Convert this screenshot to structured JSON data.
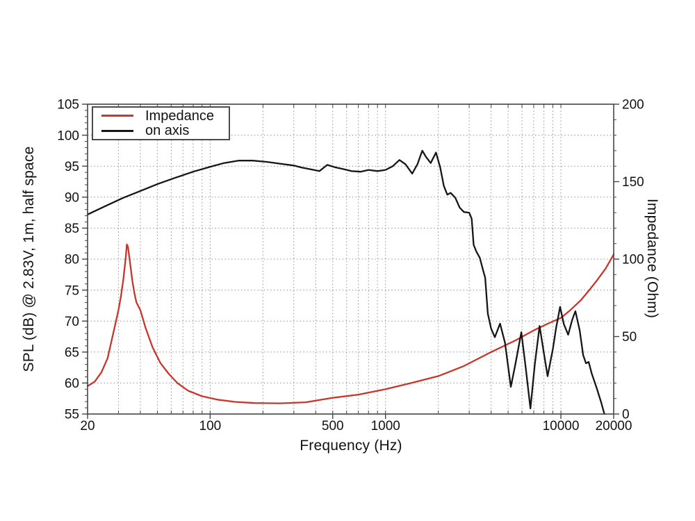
{
  "chart_data": {
    "type": "line",
    "title": "",
    "grid": "dotted",
    "colors": {
      "impedance": "#c8352a",
      "on_axis": "#161616",
      "grid": "#8f8f8f",
      "frame": "#444444"
    },
    "x_axis": {
      "label": "Frequency (Hz)",
      "scale": "log",
      "min": 20,
      "max": 20000,
      "tick_values": [
        20,
        100,
        500,
        1000,
        10000,
        20000
      ],
      "tick_labels": [
        "20",
        "100",
        "500",
        "1000",
        "10000",
        "20000"
      ],
      "minor_ticks": "log positions 2-9 per decade"
    },
    "y_left": {
      "label": "SPL (dB) @ 2.83V, 1m, half space",
      "min": 55,
      "max": 105,
      "tick_values": [
        55,
        60,
        65,
        70,
        75,
        80,
        85,
        90,
        95,
        100,
        105
      ],
      "tick_labels": [
        "55",
        "60",
        "65",
        "70",
        "75",
        "80",
        "85",
        "90",
        "95",
        "100",
        "105"
      ],
      "minor_tick_step": 1
    },
    "y_right": {
      "label": "Impedance (Ohm)",
      "min": 0,
      "max": 200,
      "tick_values": [
        0,
        50,
        100,
        150,
        200
      ],
      "tick_labels": [
        "0",
        "50",
        "100",
        "150",
        "200"
      ],
      "minor_tick_step": 10
    },
    "legend": {
      "position": "top-left",
      "entries": [
        {
          "label": "Impedance",
          "color": "#c8352a"
        },
        {
          "label": "on axis",
          "color": "#161616"
        }
      ]
    },
    "series": [
      {
        "name": "Impedance",
        "axis": "right",
        "unit": "Ohm",
        "color": "#c8352a",
        "points": [
          [
            20,
            18
          ],
          [
            22,
            21
          ],
          [
            24,
            27
          ],
          [
            26,
            36
          ],
          [
            28,
            52
          ],
          [
            30,
            67
          ],
          [
            31,
            76
          ],
          [
            32,
            87
          ],
          [
            33,
            101
          ],
          [
            33.5,
            109.5
          ],
          [
            34,
            108
          ],
          [
            35,
            97
          ],
          [
            36,
            86
          ],
          [
            37,
            78
          ],
          [
            38,
            72
          ],
          [
            40,
            67
          ],
          [
            43,
            55
          ],
          [
            47,
            43
          ],
          [
            52,
            33
          ],
          [
            58,
            26
          ],
          [
            65,
            20
          ],
          [
            75,
            15
          ],
          [
            90,
            11.5
          ],
          [
            110,
            9.3
          ],
          [
            140,
            7.8
          ],
          [
            180,
            7.1
          ],
          [
            250,
            6.9
          ],
          [
            350,
            7.6
          ],
          [
            500,
            10.5
          ],
          [
            700,
            12.5
          ],
          [
            1000,
            16
          ],
          [
            1400,
            20
          ],
          [
            2000,
            24.5
          ],
          [
            2800,
            31
          ],
          [
            4000,
            40
          ],
          [
            5500,
            47.5
          ],
          [
            7000,
            54
          ],
          [
            8500,
            58.5
          ],
          [
            10000,
            62
          ],
          [
            11300,
            67
          ],
          [
            13000,
            73.5
          ],
          [
            14500,
            80
          ],
          [
            16000,
            86
          ],
          [
            18000,
            94
          ],
          [
            20000,
            103
          ]
        ]
      },
      {
        "name": "on axis",
        "axis": "left",
        "unit": "dB",
        "color": "#161616",
        "points": [
          [
            20,
            87.2
          ],
          [
            25,
            88.5
          ],
          [
            32,
            89.9
          ],
          [
            40,
            91.0
          ],
          [
            50,
            92.1
          ],
          [
            63,
            93.1
          ],
          [
            80,
            94.1
          ],
          [
            100,
            94.9
          ],
          [
            120,
            95.5
          ],
          [
            145,
            95.9
          ],
          [
            175,
            95.9
          ],
          [
            210,
            95.7
          ],
          [
            250,
            95.4
          ],
          [
            300,
            95.1
          ],
          [
            330,
            94.8
          ],
          [
            390,
            94.4
          ],
          [
            420,
            94.2
          ],
          [
            465,
            95.2
          ],
          [
            520,
            94.8
          ],
          [
            560,
            94.6
          ],
          [
            640,
            94.2
          ],
          [
            720,
            94.1
          ],
          [
            800,
            94.4
          ],
          [
            900,
            94.2
          ],
          [
            1000,
            94.4
          ],
          [
            1100,
            95.0
          ],
          [
            1200,
            96.0
          ],
          [
            1300,
            95.3
          ],
          [
            1420,
            93.8
          ],
          [
            1520,
            95.3
          ],
          [
            1620,
            97.5
          ],
          [
            1700,
            96.5
          ],
          [
            1810,
            95.5
          ],
          [
            1940,
            97.2
          ],
          [
            2050,
            94.8
          ],
          [
            2150,
            91.8
          ],
          [
            2250,
            90.4
          ],
          [
            2350,
            90.7
          ],
          [
            2500,
            89.9
          ],
          [
            2650,
            88.3
          ],
          [
            2800,
            87.6
          ],
          [
            3000,
            87.5
          ],
          [
            3100,
            86.5
          ],
          [
            3180,
            82.3
          ],
          [
            3300,
            81.2
          ],
          [
            3450,
            80.2
          ],
          [
            3600,
            78.2
          ],
          [
            3700,
            77.0
          ],
          [
            3830,
            71.2
          ],
          [
            4000,
            68.8
          ],
          [
            4200,
            67.4
          ],
          [
            4500,
            69.6
          ],
          [
            4800,
            66.5
          ],
          [
            5180,
            59.4
          ],
          [
            5500,
            63.0
          ],
          [
            5950,
            68.2
          ],
          [
            6300,
            62.5
          ],
          [
            6700,
            55.9
          ],
          [
            7100,
            63.0
          ],
          [
            7560,
            69.2
          ],
          [
            8000,
            64.8
          ],
          [
            8400,
            61.1
          ],
          [
            9000,
            65.5
          ],
          [
            9400,
            69.0
          ],
          [
            9900,
            72.3
          ],
          [
            10400,
            69.5
          ],
          [
            11000,
            67.8
          ],
          [
            11600,
            70.2
          ],
          [
            12100,
            71.6
          ],
          [
            12800,
            68.5
          ],
          [
            13400,
            64.5
          ],
          [
            13900,
            63.2
          ],
          [
            14400,
            63.4
          ],
          [
            15000,
            61.5
          ],
          [
            16000,
            59.2
          ],
          [
            17000,
            56.8
          ],
          [
            17700,
            55.0
          ]
        ]
      }
    ]
  }
}
